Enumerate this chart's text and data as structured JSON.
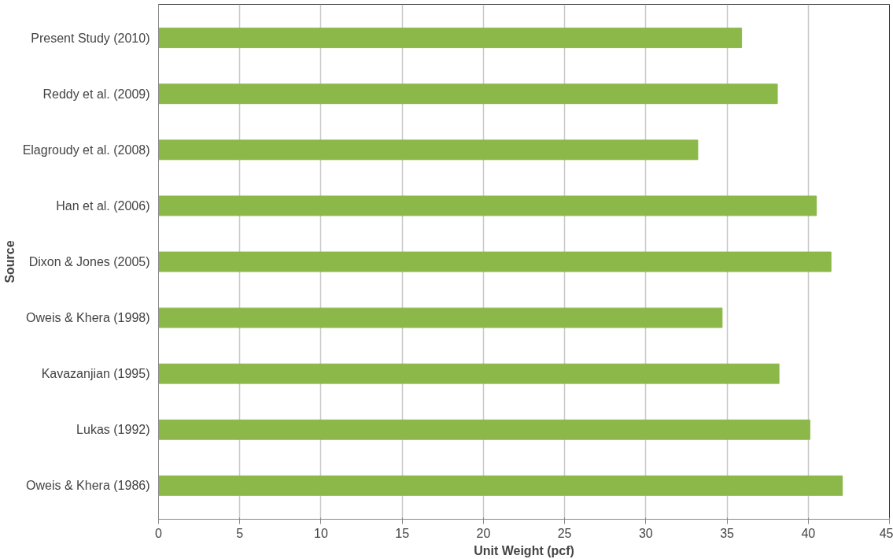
{
  "chart_data": {
    "type": "bar",
    "orientation": "horizontal",
    "xlabel": "Unit Weight (pcf)",
    "ylabel": "Source",
    "categories": [
      "Present Study (2010)",
      "Reddy et al. (2009)",
      "Elagroudy et al. (2008)",
      "Han et al. (2006)",
      "Dixon & Jones (2005)",
      "Oweis & Khera (1998)",
      "Kavazanjian (1995)",
      "Lukas (1992)",
      "Oweis & Khera (1986)"
    ],
    "values": [
      35.9,
      38.1,
      33.2,
      40.5,
      41.4,
      34.7,
      38.2,
      40.1,
      42.1
    ],
    "color": "#8cb84a",
    "xlim": [
      0,
      45
    ],
    "xticks": [
      0,
      5,
      10,
      15,
      20,
      25,
      30,
      35,
      40,
      45
    ],
    "grid": "x"
  }
}
